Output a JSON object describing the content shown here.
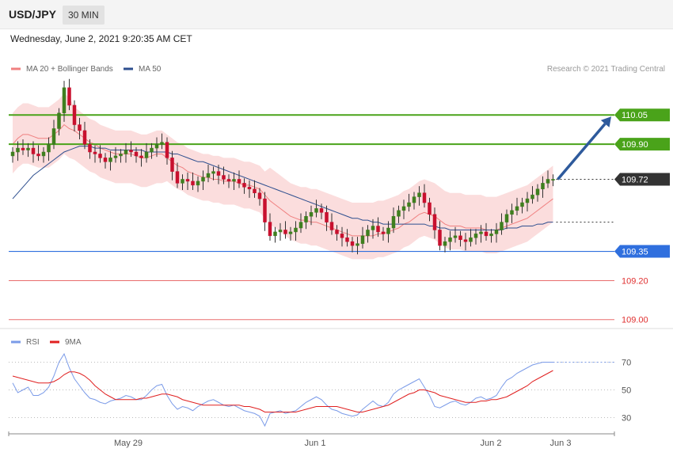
{
  "header": {
    "symbol": "USD/JPY",
    "timeframe": "30 MIN",
    "datetime": "Wednesday, June 2, 2021 9:20:35 AM CET"
  },
  "legend": {
    "ma20": "MA 20 + Bollinger Bands",
    "ma50": "MA 50",
    "source": "Research © 2021 Trading Central",
    "rsi": "RSI",
    "rsi_ma": "9MA"
  },
  "colors": {
    "bull": "#3f7f1f",
    "bear": "#c8102e",
    "ma20": "#f08080",
    "ma50": "#2e4f8f",
    "band": "#fbd9d9",
    "green_level": "#4aa31a",
    "blue_level": "#2f6fde",
    "red_level": "#e03030",
    "current": "#333333",
    "rsi": "#7b9be8",
    "rsi_ma": "#e02020",
    "arrow": "#2e5a9c"
  },
  "chart_data": [
    {
      "type": "candlestick",
      "ylim": [
        108.95,
        110.25
      ],
      "x_labels": [
        "May 29",
        "Jun 1",
        "Jun 2",
        "Jun 3"
      ],
      "levels": [
        {
          "value": 110.05,
          "label": "110.05",
          "kind": "resistance"
        },
        {
          "value": 109.9,
          "label": "109.90",
          "kind": "resistance"
        },
        {
          "value": 109.72,
          "label": "109.72",
          "kind": "current"
        },
        {
          "value": 109.35,
          "label": "109.35",
          "kind": "pivot"
        },
        {
          "value": 109.2,
          "label": "109.20",
          "kind": "support"
        },
        {
          "value": 109.0,
          "label": "109.00",
          "kind": "support"
        }
      ],
      "forecast": {
        "from": 109.72,
        "to": 110.05
      },
      "series": [
        {
          "name": "MA 20 + Bollinger Bands"
        },
        {
          "name": "MA 50"
        }
      ],
      "close": [
        109.86,
        109.88,
        109.87,
        109.88,
        109.85,
        109.84,
        109.86,
        109.9,
        109.98,
        110.06,
        110.19,
        110.1,
        110.0,
        109.97,
        109.9,
        109.86,
        109.85,
        109.83,
        109.81,
        109.83,
        109.84,
        109.85,
        109.87,
        109.86,
        109.84,
        109.83,
        109.86,
        109.88,
        109.9,
        109.91,
        109.83,
        109.76,
        109.7,
        109.72,
        109.71,
        109.69,
        109.71,
        109.73,
        109.75,
        109.76,
        109.74,
        109.72,
        109.71,
        109.72,
        109.7,
        109.68,
        109.67,
        109.65,
        109.62,
        109.5,
        109.43,
        109.45,
        109.46,
        109.44,
        109.45,
        109.47,
        109.5,
        109.53,
        109.55,
        109.57,
        109.55,
        109.5,
        109.46,
        109.44,
        109.42,
        109.4,
        109.38,
        109.39,
        109.43,
        109.46,
        109.48,
        109.45,
        109.44,
        109.47,
        109.53,
        109.56,
        109.58,
        109.6,
        109.63,
        109.65,
        109.6,
        109.54,
        109.46,
        109.38,
        109.4,
        109.42,
        109.43,
        109.41,
        109.4,
        109.42,
        109.44,
        109.45,
        109.43,
        109.44,
        109.46,
        109.5,
        109.54,
        109.56,
        109.58,
        109.6,
        109.62,
        109.64,
        109.67,
        109.7,
        109.72,
        109.72
      ],
      "ma20": [
        109.9,
        109.93,
        109.95,
        109.95,
        109.94,
        109.93,
        109.93,
        109.93,
        109.95,
        109.97,
        110.0,
        109.98,
        109.97,
        109.95,
        109.93,
        109.91,
        109.9,
        109.88,
        109.87,
        109.86,
        109.85,
        109.85,
        109.85,
        109.85,
        109.84,
        109.83,
        109.83,
        109.84,
        109.85,
        109.85,
        109.83,
        109.81,
        109.79,
        109.78,
        109.76,
        109.75,
        109.74,
        109.73,
        109.73,
        109.72,
        109.72,
        109.71,
        109.71,
        109.71,
        109.7,
        109.69,
        109.69,
        109.68,
        109.67,
        109.64,
        109.61,
        109.59,
        109.57,
        109.55,
        109.53,
        109.52,
        109.51,
        109.51,
        109.5,
        109.5,
        109.49,
        109.48,
        109.47,
        109.46,
        109.45,
        109.44,
        109.43,
        109.43,
        109.43,
        109.43,
        109.43,
        109.44,
        109.44,
        109.45,
        109.46,
        109.47,
        109.49,
        109.5,
        109.52,
        109.54,
        109.55,
        109.54,
        109.53,
        109.51,
        109.49,
        109.48,
        109.48,
        109.48,
        109.47,
        109.47,
        109.47,
        109.47,
        109.46,
        109.46,
        109.46,
        109.47,
        109.48,
        109.49,
        109.5,
        109.51,
        109.52,
        109.54,
        109.56,
        109.58,
        109.6,
        109.62
      ],
      "ma50": [
        109.62,
        109.65,
        109.68,
        109.71,
        109.74,
        109.76,
        109.78,
        109.8,
        109.82,
        109.84,
        109.86,
        109.87,
        109.88,
        109.89,
        109.89,
        109.89,
        109.88,
        109.88,
        109.88,
        109.87,
        109.87,
        109.87,
        109.87,
        109.87,
        109.87,
        109.87,
        109.86,
        109.86,
        109.86,
        109.86,
        109.86,
        109.85,
        109.85,
        109.84,
        109.83,
        109.82,
        109.81,
        109.81,
        109.8,
        109.79,
        109.78,
        109.77,
        109.76,
        109.75,
        109.74,
        109.73,
        109.72,
        109.71,
        109.7,
        109.69,
        109.68,
        109.67,
        109.66,
        109.65,
        109.64,
        109.63,
        109.62,
        109.61,
        109.6,
        109.59,
        109.58,
        109.57,
        109.56,
        109.55,
        109.54,
        109.53,
        109.52,
        109.52,
        109.51,
        109.51,
        109.5,
        109.5,
        109.49,
        109.49,
        109.49,
        109.49,
        109.49,
        109.49,
        109.49,
        109.49,
        109.49,
        109.48,
        109.48,
        109.47,
        109.47,
        109.46,
        109.46,
        109.46,
        109.46,
        109.46,
        109.46,
        109.46,
        109.46,
        109.46,
        109.46,
        109.46,
        109.47,
        109.47,
        109.47,
        109.48,
        109.48,
        109.48,
        109.49,
        109.49,
        109.5,
        109.5
      ]
    },
    {
      "type": "line",
      "title": "RSI",
      "ylim": [
        20,
        80
      ],
      "ticks": [
        30,
        50,
        70
      ],
      "series": [
        {
          "name": "RSI",
          "values": [
            55,
            48,
            50,
            52,
            46,
            46,
            48,
            52,
            60,
            70,
            76,
            66,
            58,
            53,
            48,
            44,
            43,
            41,
            40,
            42,
            43,
            44,
            46,
            45,
            43,
            43,
            46,
            50,
            53,
            54,
            46,
            40,
            36,
            38,
            37,
            35,
            38,
            40,
            42,
            43,
            41,
            39,
            38,
            39,
            37,
            35,
            34,
            33,
            31,
            24,
            33,
            34,
            35,
            33,
            34,
            35,
            38,
            41,
            43,
            45,
            43,
            39,
            36,
            35,
            33,
            32,
            31,
            32,
            36,
            39,
            42,
            39,
            38,
            41,
            47,
            50,
            52,
            54,
            56,
            58,
            52,
            46,
            38,
            37,
            39,
            41,
            42,
            40,
            39,
            41,
            44,
            45,
            43,
            44,
            46,
            52,
            57,
            59,
            62,
            64,
            66,
            68,
            69,
            70,
            70,
            70
          ]
        },
        {
          "name": "9MA",
          "values": [
            60,
            59,
            58,
            57,
            56,
            55,
            55,
            55,
            56,
            58,
            61,
            63,
            63,
            62,
            60,
            57,
            53,
            50,
            47,
            45,
            43,
            43,
            43,
            43,
            43,
            44,
            44,
            45,
            46,
            47,
            47,
            46,
            45,
            43,
            42,
            41,
            40,
            39,
            39,
            39,
            39,
            39,
            39,
            39,
            39,
            38,
            38,
            37,
            36,
            34,
            34,
            34,
            34,
            34,
            34,
            34,
            35,
            36,
            37,
            38,
            38,
            38,
            38,
            38,
            37,
            36,
            35,
            34,
            34,
            35,
            36,
            37,
            38,
            39,
            41,
            43,
            45,
            47,
            48,
            50,
            50,
            49,
            48,
            46,
            45,
            44,
            43,
            42,
            41,
            41,
            41,
            42,
            42,
            43,
            43,
            44,
            45,
            47,
            49,
            51,
            53,
            56,
            58,
            60,
            62,
            64
          ]
        }
      ]
    }
  ]
}
